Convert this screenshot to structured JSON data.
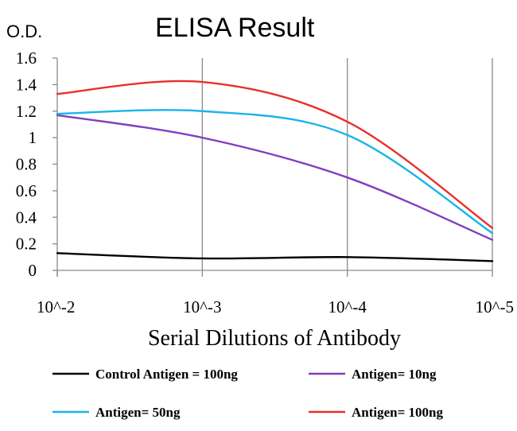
{
  "chart_data": {
    "type": "line",
    "title": "ELISA Result",
    "ylabel": "O.D.",
    "xlabel": "Serial Dilutions of Antibody",
    "x": [
      "10^-2",
      "10^-3",
      "10^-4",
      "10^-5"
    ],
    "ylim": [
      0,
      1.6
    ],
    "yticks": [
      "0",
      "0.2",
      "0.4",
      "0.6",
      "0.8",
      "1",
      "1.2",
      "1.4",
      "1.6"
    ],
    "grid": "vertical",
    "legend_position": "bottom",
    "series": [
      {
        "name": "Control Antigen = 100ng",
        "color": "#000000",
        "values": [
          0.13,
          0.09,
          0.1,
          0.07
        ]
      },
      {
        "name": "Antigen= 10ng",
        "color": "#7f3fbf",
        "values": [
          1.17,
          1.0,
          0.7,
          0.23
        ]
      },
      {
        "name": "Antigen= 50ng",
        "color": "#19b5e8",
        "values": [
          1.18,
          1.2,
          1.02,
          0.28
        ]
      },
      {
        "name": "Antigen= 100ng",
        "color": "#e8302a",
        "values": [
          1.33,
          1.42,
          1.12,
          0.32
        ]
      }
    ]
  }
}
